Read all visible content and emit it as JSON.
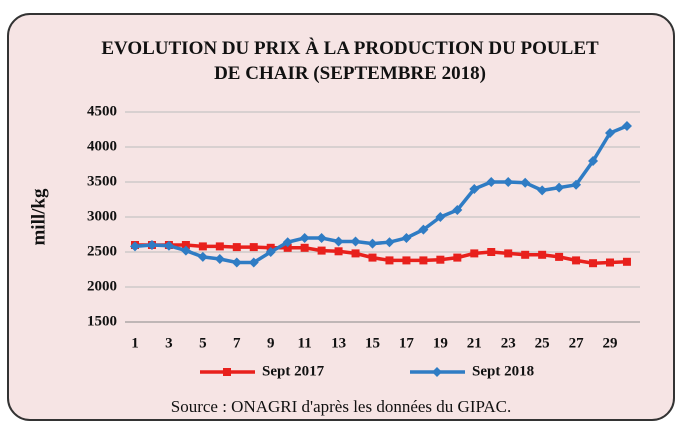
{
  "chart_data": {
    "type": "line",
    "title": "EVOLUTION DU PRIX À LA PRODUCTION DU POULET DE CHAIR (SEPTEMBRE 2018)",
    "y_label": "mill/kg",
    "categories": [
      1,
      null,
      3,
      null,
      5,
      null,
      7,
      null,
      9,
      null,
      11,
      null,
      13,
      null,
      15,
      null,
      17,
      null,
      19,
      null,
      21,
      null,
      23,
      null,
      25,
      null,
      27,
      null,
      29,
      null
    ],
    "series": [
      {
        "name": "Sept 2017",
        "color": "#e8201c",
        "marker": "square",
        "values": [
          2600,
          2600,
          2600,
          2600,
          2580,
          2580,
          2570,
          2570,
          2560,
          2560,
          2560,
          2520,
          2510,
          2480,
          2420,
          2380,
          2380,
          2380,
          2390,
          2420,
          2480,
          2500,
          2480,
          2460,
          2460,
          2430,
          2380,
          2340,
          2350,
          2360
        ]
      },
      {
        "name": "Sept 2018",
        "color": "#2f7cc4",
        "marker": "diamond",
        "values": [
          2580,
          2600,
          2590,
          2520,
          2430,
          2400,
          2350,
          2350,
          2500,
          2640,
          2700,
          2700,
          2650,
          2650,
          2620,
          2640,
          2700,
          2820,
          3000,
          3100,
          3400,
          3500,
          3500,
          3490,
          3380,
          3420,
          3460,
          3800,
          4200,
          4300
        ]
      }
    ],
    "ylim": [
      1500,
      4500
    ],
    "yticks": [
      1500,
      2000,
      2500,
      3000,
      3500,
      4000,
      4500
    ],
    "grid": true,
    "legend": "bottom",
    "source": "Source : ONAGRI d'après les données du  GIPAC."
  }
}
